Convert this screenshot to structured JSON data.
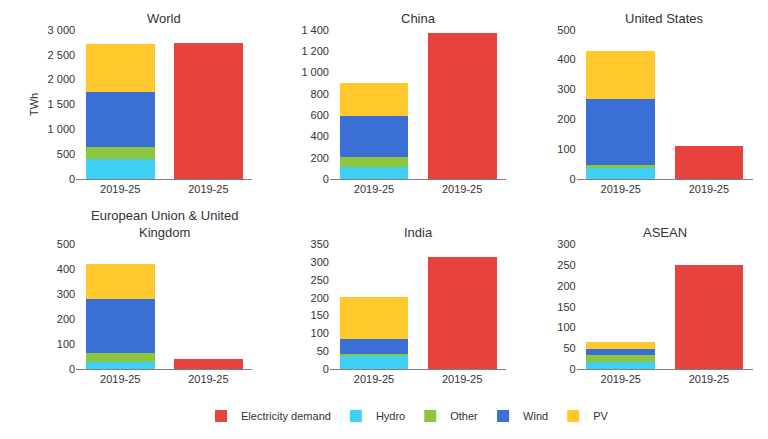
{
  "chart_data": [
    {
      "type": "bar",
      "title": "World",
      "y_label": "TWh",
      "stacked": true,
      "grid": false,
      "legend": "bottom",
      "categories": [
        "2019-25",
        "2019-25"
      ],
      "series": [
        {
          "name": "Electricity demand",
          "color": "#e8423f",
          "values": [
            null,
            2740
          ]
        },
        {
          "name": "Hydro",
          "color": "#3fd0f5",
          "values": [
            400,
            null
          ]
        },
        {
          "name": "Other",
          "color": "#8cc63f",
          "values": [
            250,
            null
          ]
        },
        {
          "name": "Wind",
          "color": "#3a6fd6",
          "values": [
            1100,
            null
          ]
        },
        {
          "name": "PV",
          "color": "#ffc92e",
          "values": [
            970,
            null
          ]
        }
      ],
      "ylim": [
        0,
        3000
      ],
      "yticks": [
        0,
        500,
        {
          "value": 1000,
          "label": "1 000"
        },
        {
          "value": 1500,
          "label": "1 500"
        },
        {
          "value": 2000,
          "label": "2 000"
        },
        {
          "value": 2500,
          "label": "2 500"
        },
        {
          "value": 3000,
          "label": "3 000"
        }
      ]
    },
    {
      "type": "bar",
      "title": "China",
      "stacked": true,
      "grid": false,
      "legend": "bottom",
      "categories": [
        "2019-25",
        "2019-25"
      ],
      "series": [
        {
          "name": "Electricity demand",
          "color": "#e8423f",
          "values": [
            null,
            1370
          ]
        },
        {
          "name": "Hydro",
          "color": "#3fd0f5",
          "values": [
            110,
            null
          ]
        },
        {
          "name": "Other",
          "color": "#8cc63f",
          "values": [
            100,
            null
          ]
        },
        {
          "name": "Wind",
          "color": "#3a6fd6",
          "values": [
            380,
            null
          ]
        },
        {
          "name": "PV",
          "color": "#ffc92e",
          "values": [
            310,
            null
          ]
        }
      ],
      "ylim": [
        0,
        1400
      ],
      "yticks": [
        0,
        200,
        400,
        600,
        800,
        {
          "value": 1000,
          "label": "1 000"
        },
        {
          "value": 1200,
          "label": "1 200"
        },
        {
          "value": 1400,
          "label": "1 400"
        }
      ]
    },
    {
      "type": "bar",
      "title": "United States",
      "stacked": true,
      "grid": false,
      "legend": "bottom",
      "categories": [
        "2019-25",
        "2019-25"
      ],
      "series": [
        {
          "name": "Electricity demand",
          "color": "#e8423f",
          "values": [
            null,
            110
          ]
        },
        {
          "name": "Hydro",
          "color": "#3fd0f5",
          "values": [
            38,
            null
          ]
        },
        {
          "name": "Other",
          "color": "#8cc63f",
          "values": [
            10,
            null
          ]
        },
        {
          "name": "Wind",
          "color": "#3a6fd6",
          "values": [
            220,
            null
          ]
        },
        {
          "name": "PV",
          "color": "#ffc92e",
          "values": [
            162,
            null
          ]
        }
      ],
      "ylim": [
        0,
        500
      ],
      "yticks": [
        0,
        100,
        200,
        300,
        400,
        500
      ]
    },
    {
      "type": "bar",
      "title": "European Union & United Kingdom",
      "stacked": true,
      "grid": false,
      "legend": "bottom",
      "categories": [
        "2019-25",
        "2019-25"
      ],
      "series": [
        {
          "name": "Electricity demand",
          "color": "#e8423f",
          "values": [
            null,
            42
          ]
        },
        {
          "name": "Hydro",
          "color": "#3fd0f5",
          "values": [
            30,
            null
          ]
        },
        {
          "name": "Other",
          "color": "#8cc63f",
          "values": [
            35,
            null
          ]
        },
        {
          "name": "Wind",
          "color": "#3a6fd6",
          "values": [
            217,
            null
          ]
        },
        {
          "name": "PV",
          "color": "#ffc92e",
          "values": [
            138,
            null
          ]
        }
      ],
      "ylim": [
        0,
        500
      ],
      "yticks": [
        0,
        100,
        200,
        300,
        400,
        500
      ]
    },
    {
      "type": "bar",
      "title": "India",
      "stacked": true,
      "grid": false,
      "legend": "bottom",
      "categories": [
        "2019-25",
        "2019-25"
      ],
      "series": [
        {
          "name": "Electricity demand",
          "color": "#e8423f",
          "values": [
            null,
            315
          ]
        },
        {
          "name": "Hydro",
          "color": "#3fd0f5",
          "values": [
            38,
            null
          ]
        },
        {
          "name": "Other",
          "color": "#8cc63f",
          "values": [
            5,
            null
          ]
        },
        {
          "name": "Wind",
          "color": "#3a6fd6",
          "values": [
            40,
            null
          ]
        },
        {
          "name": "PV",
          "color": "#ffc92e",
          "values": [
            120,
            null
          ]
        }
      ],
      "ylim": [
        0,
        350
      ],
      "yticks": [
        0,
        50,
        100,
        150,
        200,
        250,
        300,
        350
      ]
    },
    {
      "type": "bar",
      "title": "ASEAN",
      "stacked": true,
      "grid": false,
      "legend": "bottom",
      "categories": [
        "2019-25",
        "2019-25"
      ],
      "series": [
        {
          "name": "Electricity demand",
          "color": "#e8423f",
          "values": [
            null,
            250
          ]
        },
        {
          "name": "Hydro",
          "color": "#3fd0f5",
          "values": [
            18,
            null
          ]
        },
        {
          "name": "Other",
          "color": "#8cc63f",
          "values": [
            15,
            null
          ]
        },
        {
          "name": "Wind",
          "color": "#3a6fd6",
          "values": [
            15,
            null
          ]
        },
        {
          "name": "PV",
          "color": "#ffc92e",
          "values": [
            18,
            null
          ]
        }
      ],
      "ylim": [
        0,
        300
      ],
      "yticks": [
        0,
        50,
        100,
        150,
        200,
        250,
        300
      ]
    }
  ]
}
